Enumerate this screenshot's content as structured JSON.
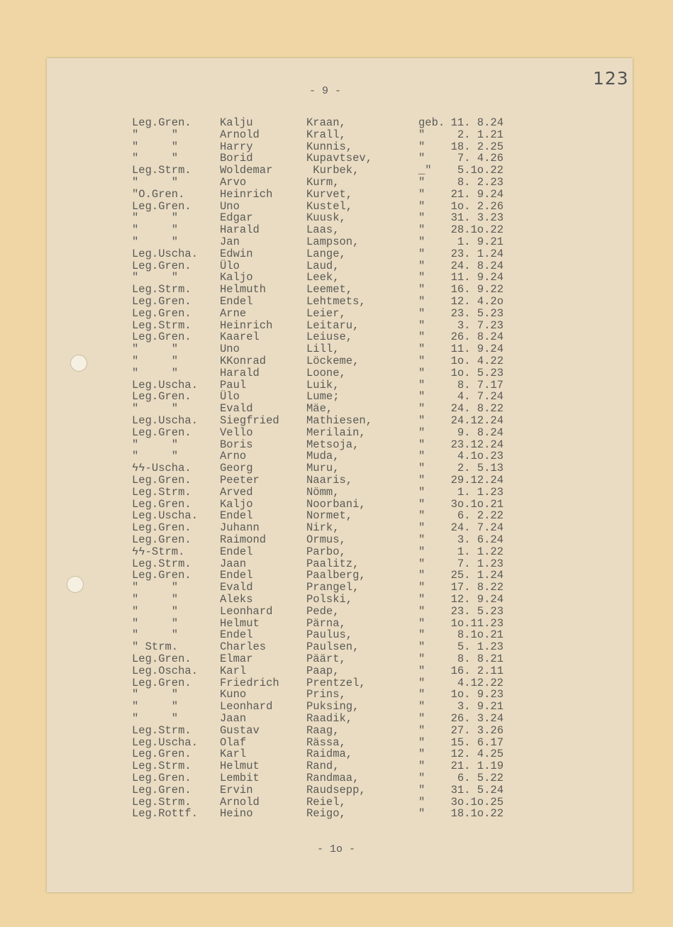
{
  "document": {
    "archive_number": "123",
    "header_page": "- 9 -",
    "footer_page": "- 1o -",
    "rows": [
      {
        "rank": "Leg.Gren.",
        "first": "Kalju",
        "last": "Kraan,",
        "ditto": "geb.",
        "date": "11. 8.24"
      },
      {
        "rank": "\"     \"",
        "first": "Arnold",
        "last": "Krall,",
        "ditto": "\"",
        "date": "2. 1.21"
      },
      {
        "rank": "\"     \"",
        "first": "Harry",
        "last": "Kunnis,",
        "ditto": "\"",
        "date": "18. 2.25"
      },
      {
        "rank": "\"     \"",
        "first": "Borid",
        "last": "Kupavtsev,",
        "ditto": "\"",
        "date": "7. 4.26"
      },
      {
        "rank": "Leg.Strm.",
        "first": "Woldemar",
        "last": " Kurbek,",
        "ditto": "_\"",
        "date": "5.1o.22"
      },
      {
        "rank": "\"     \"",
        "first": "Arvo",
        "last": "Kurm,",
        "ditto": "\"",
        "date": "8. 2.23"
      },
      {
        "rank": "\"O.Gren.",
        "first": "Heinrich",
        "last": "Kurvet,",
        "ditto": "\"",
        "date": "21. 9.24"
      },
      {
        "rank": "Leg.Gren.",
        "first": "Uno",
        "last": "Kustel,",
        "ditto": "\"",
        "date": "1o. 2.26"
      },
      {
        "rank": "\"     \"",
        "first": "Edgar",
        "last": "Kuusk,",
        "ditto": "\"",
        "date": "31. 3.23"
      },
      {
        "rank": "\"     \"",
        "first": "Harald",
        "last": "Laas,",
        "ditto": "\"",
        "date": "28.1o.22"
      },
      {
        "rank": "\"     \"",
        "first": "Jan",
        "last": "Lampson,",
        "ditto": "\"",
        "date": "1. 9.21"
      },
      {
        "rank": "Leg.Uscha.",
        "first": "Edwin",
        "last": "Lange,",
        "ditto": "\"",
        "date": "23. 1.24"
      },
      {
        "rank": "Leg.Gren.",
        "first": "Ülo",
        "last": "Laud,",
        "ditto": "\"",
        "date": "24. 8.24"
      },
      {
        "rank": "\"     \"",
        "first": "Kaljo",
        "last": "Leek,",
        "ditto": "\"",
        "date": "11. 9.24"
      },
      {
        "rank": "Leg.Strm.",
        "first": "Helmuth",
        "last": "Leemet,",
        "ditto": "\"",
        "date": "16. 9.22"
      },
      {
        "rank": "Leg.Gren.",
        "first": "Endel",
        "last": "Lehtmets,",
        "ditto": "\"",
        "date": "12. 4.2o"
      },
      {
        "rank": "Leg.Gren.",
        "first": "Arne",
        "last": "Leier,",
        "ditto": "\"",
        "date": "23. 5.23"
      },
      {
        "rank": "Leg.Strm.",
        "first": "Heinrich",
        "last": "Leitaru,",
        "ditto": "\"",
        "date": "3. 7.23"
      },
      {
        "rank": "Leg.Gren.",
        "first": "Kaarel",
        "last": "Leiuse,",
        "ditto": "\"",
        "date": "26. 8.24"
      },
      {
        "rank": "\"     \"",
        "first": "Uno",
        "last": "Lill,",
        "ditto": "\"",
        "date": "11. 9.24"
      },
      {
        "rank": "\"     \"",
        "first": "KKonrad",
        "last": "Löckeme,",
        "ditto": "\"",
        "date": "1o. 4.22"
      },
      {
        "rank": "\"     \"",
        "first": "Harald",
        "last": "Loone,",
        "ditto": "\"",
        "date": "1o. 5.23"
      },
      {
        "rank": "Leg.Uscha.",
        "first": "Paul",
        "last": "Luik,",
        "ditto": "\"",
        "date": "8. 7.17"
      },
      {
        "rank": "Leg.Gren.",
        "first": "Ülo",
        "last": "Lume;",
        "ditto": "\"",
        "date": "4. 7.24"
      },
      {
        "rank": "\"     \"",
        "first": "Evald",
        "last": "Mäe,",
        "ditto": "\"",
        "date": "24. 8.22"
      },
      {
        "rank": "Leg.Uscha.",
        "first": "Siegfried",
        "last": "Mathiesen,",
        "ditto": "\"",
        "date": "24.12.24"
      },
      {
        "rank": "Leg.Gren.",
        "first": "Vello",
        "last": "Merilain,",
        "ditto": "\"",
        "date": "9. 8.24"
      },
      {
        "rank": "\"     \"",
        "first": "Boris",
        "last": "Metsoja,",
        "ditto": "\"",
        "date": "23.12.24"
      },
      {
        "rank": "\"     \"",
        "first": "Arno",
        "last": "Muda,",
        "ditto": "\"",
        "date": "4.1o.23"
      },
      {
        "rank": "ϟϟ-Uscha.",
        "first": "Georg",
        "last": "Muru,",
        "ditto": "\"",
        "date": "2. 5.13"
      },
      {
        "rank": "Leg.Gren.",
        "first": "Peeter",
        "last": "Naaris,",
        "ditto": "\"",
        "date": "29.12.24"
      },
      {
        "rank": "Leg.Strm.",
        "first": "Arved",
        "last": "Nömm,",
        "ditto": "\"",
        "date": "1. 1.23"
      },
      {
        "rank": "Leg.Gren.",
        "first": "Kaljo",
        "last": "Noorbani,",
        "ditto": "\"",
        "date": "3o.1o.21"
      },
      {
        "rank": "Leg.Uscha.",
        "first": "Endel",
        "last": "Normet,",
        "ditto": "\"",
        "date": "6. 2.22"
      },
      {
        "rank": "Leg.Gren.",
        "first": "Juhann",
        "last": "Nirk,",
        "ditto": "\"",
        "date": "24. 7.24"
      },
      {
        "rank": "Leg.Gren.",
        "first": "Raimond",
        "last": "Ormus,",
        "ditto": "\"",
        "date": "3. 6.24"
      },
      {
        "rank": "ϟϟ-Strm.",
        "first": "Endel",
        "last": "Parbo,",
        "ditto": "\"",
        "date": "1. 1.22"
      },
      {
        "rank": "Leg.Strm.",
        "first": "Jaan",
        "last": "Paalitz,",
        "ditto": "\"",
        "date": "7. 1.23"
      },
      {
        "rank": "Leg.Gren.",
        "first": "Endel",
        "last": "Paalberg,",
        "ditto": "\"",
        "date": "25. 1.24"
      },
      {
        "rank": "\"     \"",
        "first": "Evald",
        "last": "Prangel,",
        "ditto": "\"",
        "date": "17. 8.22"
      },
      {
        "rank": "\"     \"",
        "first": "Aleks",
        "last": "Polski,",
        "ditto": "\"",
        "date": "12. 9.24"
      },
      {
        "rank": "\"     \"",
        "first": "Leonhard",
        "last": "Pede,",
        "ditto": "\"",
        "date": "23. 5.23"
      },
      {
        "rank": "\"     \"",
        "first": "Helmut",
        "last": "Pärna,",
        "ditto": "\"",
        "date": "1o.11.23"
      },
      {
        "rank": "\"     \"",
        "first": "Endel",
        "last": "Paulus,",
        "ditto": "\"",
        "date": "8.1o.21"
      },
      {
        "rank": "\" Strm.",
        "first": "Charles",
        "last": "Paulsen,",
        "ditto": "\"",
        "date": "5. 1.23"
      },
      {
        "rank": "Leg.Gren.",
        "first": "Elmar",
        "last": "Päärt,",
        "ditto": "\"",
        "date": "8. 8.21"
      },
      {
        "rank": "Leg.Oscha.",
        "first": "Karl",
        "last": "Paap,",
        "ditto": "\"",
        "date": "16. 2.11"
      },
      {
        "rank": "Leg.Gren.",
        "first": "Friedrich",
        "last": "Prentzel,",
        "ditto": "\"",
        "date": "4.12.22"
      },
      {
        "rank": "\"     \"",
        "first": "Kuno",
        "last": "Prins,",
        "ditto": "\"",
        "date": "1o. 9.23"
      },
      {
        "rank": "\"     \"",
        "first": "Leonhard",
        "last": "Puksing,",
        "ditto": "\"",
        "date": "3. 9.21"
      },
      {
        "rank": "\"     \"",
        "first": "Jaan",
        "last": "Raadik,",
        "ditto": "\"",
        "date": "26. 3.24"
      },
      {
        "rank": "Leg.Strm.",
        "first": "Gustav",
        "last": "Raag,",
        "ditto": "\"",
        "date": "27. 3.26"
      },
      {
        "rank": "Leg.Uscha.",
        "first": "Olaf",
        "last": "Rässa,",
        "ditto": "\"",
        "date": "15. 6.17"
      },
      {
        "rank": "Leg.Gren.",
        "first": "Karl",
        "last": "Raidma,",
        "ditto": "\"",
        "date": "12. 4.25"
      },
      {
        "rank": "Leg.Strm.",
        "first": "Helmut",
        "last": "Rand,",
        "ditto": "\"",
        "date": "21. 1.19"
      },
      {
        "rank": "Leg.Gren.",
        "first": "Lembit",
        "last": "Randmaa,",
        "ditto": "\"",
        "date": "6. 5.22"
      },
      {
        "rank": "Leg.Gren.",
        "first": "Ervin",
        "last": "Raudsepp,",
        "ditto": "\"",
        "date": "31. 5.24"
      },
      {
        "rank": "Leg.Strm.",
        "first": "Arnold",
        "last": "Reiel,",
        "ditto": "\"",
        "date": "3o.1o.25"
      },
      {
        "rank": "Leg.Rottf.",
        "first": "Heino",
        "last": "Reigo,",
        "ditto": "\"",
        "date": "18.1o.22"
      }
    ]
  }
}
